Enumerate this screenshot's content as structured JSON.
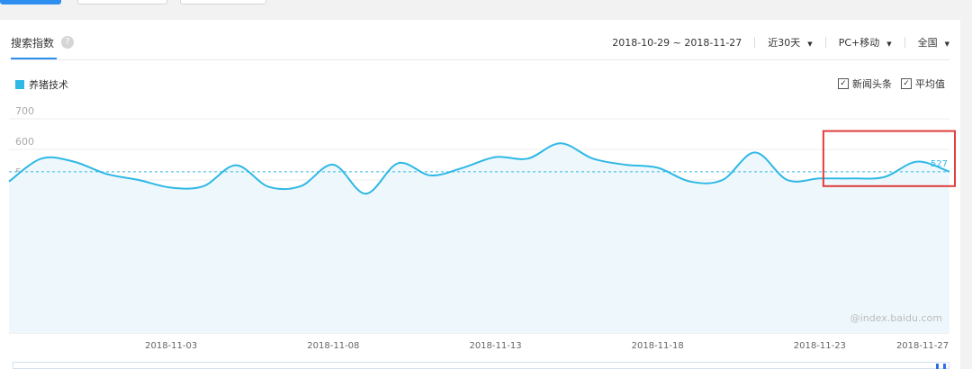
{
  "header": {
    "tab_title": "搜索指数",
    "help_icon": "?",
    "date_range": "2018-10-29 ~ 2018-11-27",
    "period": "近30天",
    "device": "PC+移动",
    "region": "全国"
  },
  "legend": {
    "series_name": "养猪技术",
    "color": "#2eb8e6"
  },
  "options": {
    "news_label": "新闻头条",
    "avg_label": "平均值",
    "news_checked": true,
    "avg_checked": true
  },
  "watermark": "@index.baidu.com",
  "chart_data": {
    "type": "area",
    "title": "",
    "xlabel": "",
    "ylabel": "",
    "ylim": [
      0,
      700
    ],
    "yticks": [
      "700",
      "600",
      "500",
      "400",
      "300",
      "200",
      "100"
    ],
    "x_tick_labels": [
      "2018-11-03",
      "2018-11-08",
      "2018-11-13",
      "2018-11-18",
      "2018-11-23",
      "2018-11-27"
    ],
    "x": [
      "2018-10-29",
      "2018-10-30",
      "2018-10-31",
      "2018-11-01",
      "2018-11-02",
      "2018-11-03",
      "2018-11-04",
      "2018-11-05",
      "2018-11-06",
      "2018-11-07",
      "2018-11-08",
      "2018-11-09",
      "2018-11-10",
      "2018-11-11",
      "2018-11-12",
      "2018-11-13",
      "2018-11-14",
      "2018-11-15",
      "2018-11-16",
      "2018-11-17",
      "2018-11-18",
      "2018-11-19",
      "2018-11-20",
      "2018-11-21",
      "2018-11-22",
      "2018-11-23",
      "2018-11-24",
      "2018-11-25",
      "2018-11-26",
      "2018-11-27"
    ],
    "series": [
      {
        "name": "养猪技术",
        "values": [
          495,
          570,
          560,
          520,
          500,
          475,
          480,
          548,
          478,
          480,
          550,
          455,
          555,
          515,
          540,
          575,
          570,
          620,
          570,
          550,
          540,
          495,
          500,
          590,
          500,
          505,
          505,
          510,
          560,
          527
        ]
      }
    ],
    "average": 527,
    "last_value_label": "527",
    "grid": true,
    "legend_position": "top-left",
    "color": "#2eb8e6",
    "highlight_color": "#e03c3c"
  }
}
